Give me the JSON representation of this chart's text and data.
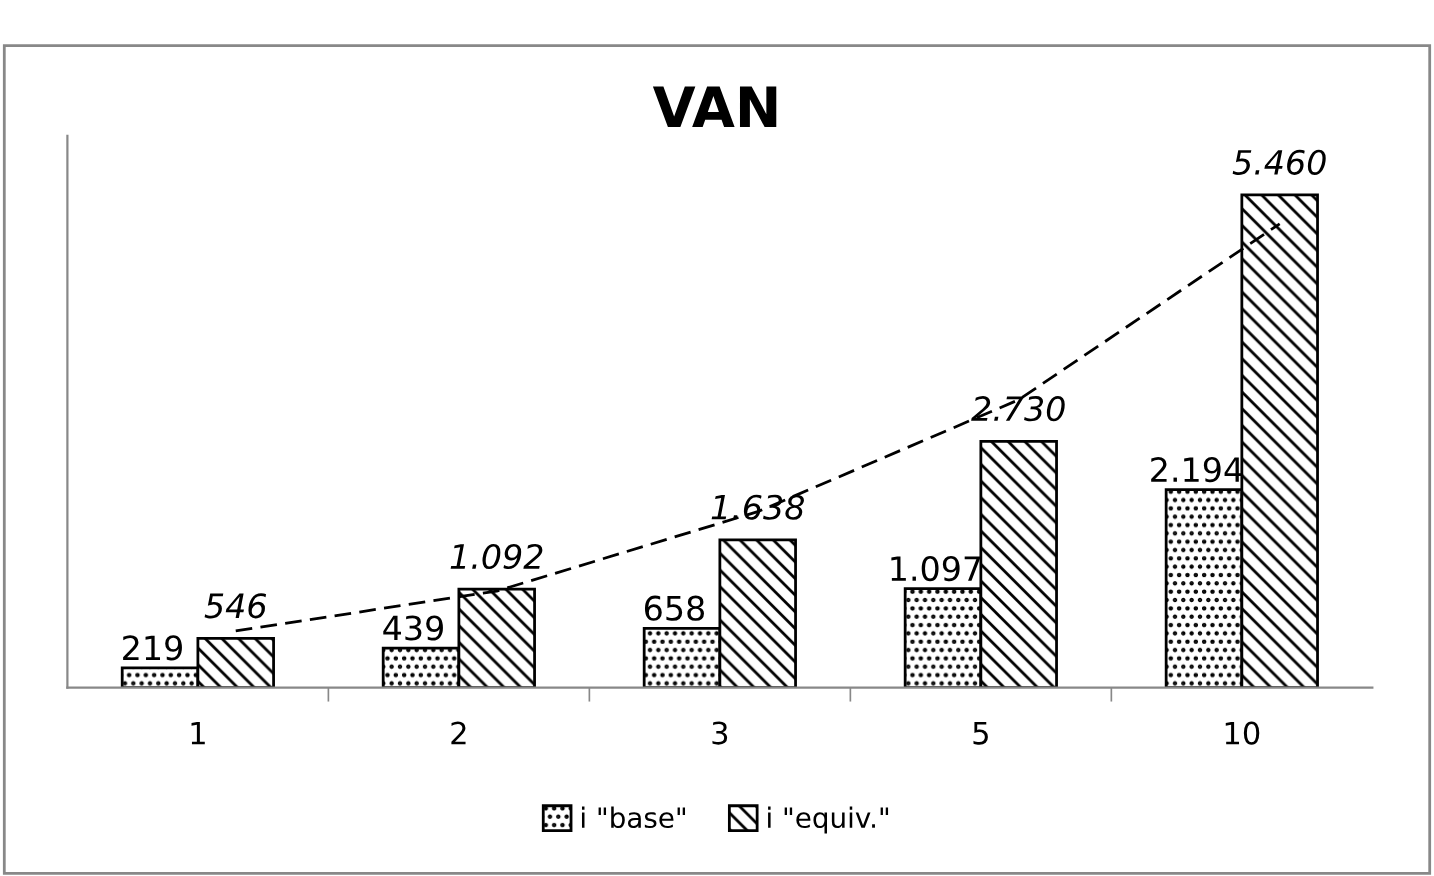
{
  "chart_data": {
    "type": "bar",
    "title": "VAN",
    "categories": [
      "1",
      "2",
      "3",
      "5",
      "10"
    ],
    "series": [
      {
        "name": "i \"base\"",
        "color": "#000000",
        "values": [
          219,
          439,
          658,
          1097,
          2194
        ],
        "value_labels": [
          "219",
          "439",
          "658",
          "1.097",
          "2.194"
        ]
      },
      {
        "name": "i \"equiv.\"",
        "color": "#000000",
        "values": [
          546,
          1092,
          1638,
          2730,
          5460
        ],
        "value_labels": [
          "546",
          "1.092",
          "1.638",
          "2.730",
          "5.460"
        ]
      },
      {
        "type": "line",
        "color": "#000000",
        "line_style": "dashed",
        "values": [
          630,
          1070,
          1950,
          3190,
          5140
        ]
      }
    ],
    "legend": "bottom",
    "grid": false
  }
}
